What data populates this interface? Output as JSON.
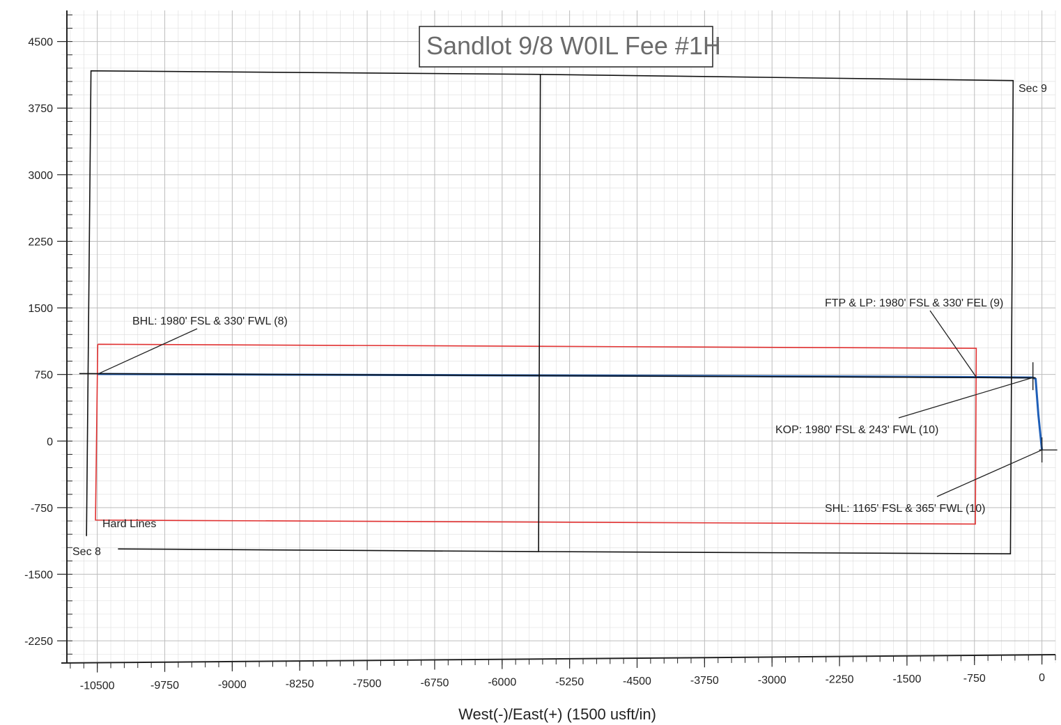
{
  "chart_data": {
    "type": "line",
    "title": "Sandlot 9/8 W0IL Fee #1H",
    "xlabel": "West(-)/East(+) (1500 usft/in)",
    "ylabel": "",
    "xlim": [
      -10900,
      150
    ],
    "ylim": [
      -2500,
      4850
    ],
    "x_major_step": 750,
    "y_major_step": 750,
    "x_minor_step": 150,
    "y_minor_step": 150,
    "grid": true,
    "x_ticks": [
      -10500,
      -9750,
      -9000,
      -8250,
      -7500,
      -6750,
      -6000,
      -5250,
      -4500,
      -3750,
      -3000,
      -2250,
      -1500,
      -750,
      0
    ],
    "y_ticks": [
      4500,
      3750,
      3000,
      2250,
      1500,
      750,
      0,
      -750,
      -1500,
      -2250
    ],
    "colors": {
      "wellbore": "#1f5fb8",
      "hard_lines": "#e03030",
      "section_lines": "#111111",
      "grid": "#bdbdbd"
    },
    "series": [
      {
        "key": "wellbore",
        "points": [
          [
            0,
            -100
          ],
          [
            -40,
            300
          ],
          [
            -70,
            700
          ],
          [
            -100,
            715
          ],
          [
            -700,
            720
          ],
          [
            -3000,
            730
          ],
          [
            -6000,
            740
          ],
          [
            -9000,
            750
          ],
          [
            -10495,
            755
          ]
        ]
      },
      {
        "key": "hard_lines",
        "label": "Hard Lines",
        "points": [
          [
            -10495,
            1090
          ],
          [
            -730,
            1045
          ],
          [
            -740,
            -935
          ],
          [
            -10520,
            -890
          ],
          [
            -10495,
            1090
          ]
        ]
      },
      {
        "key": "sec8",
        "label": "Sec 8",
        "points": [
          [
            -10620,
            -1070
          ],
          [
            -10570,
            4170
          ],
          [
            -5575,
            4130
          ],
          [
            -5595,
            -1245
          ],
          [
            -10270,
            -1215
          ]
        ]
      },
      {
        "key": "sec9",
        "label": "Sec 9",
        "points": [
          [
            -5575,
            4130
          ],
          [
            -320,
            4060
          ],
          [
            -350,
            -1270
          ],
          [
            -5595,
            -1245
          ]
        ]
      },
      {
        "key": "horizontal_axis_line",
        "points": [
          [
            -10700,
            760
          ],
          [
            -70,
            712
          ]
        ]
      }
    ],
    "points_of_interest": [
      {
        "label": "BHL: 1980' FSL & 330' FWL (8)",
        "x": -10495,
        "y": 755
      },
      {
        "label": "FTP & LP: 1980' FSL & 330' FEL (9)",
        "x": -730,
        "y": 720
      },
      {
        "label": "KOP: 1980' FSL & 243' FWL (10)",
        "x": -100,
        "y": 715
      },
      {
        "label": "SHL: 1165' FSL & 365' FWL (10)",
        "x": 0,
        "y": -100
      }
    ],
    "annotations": [
      {
        "text": "Sec 9",
        "near": [
          -320,
          4060
        ]
      },
      {
        "text": "Sec 8",
        "near": [
          -10270,
          -1215
        ]
      },
      {
        "text": "Hard Lines",
        "near": [
          -10520,
          -890
        ]
      }
    ]
  }
}
